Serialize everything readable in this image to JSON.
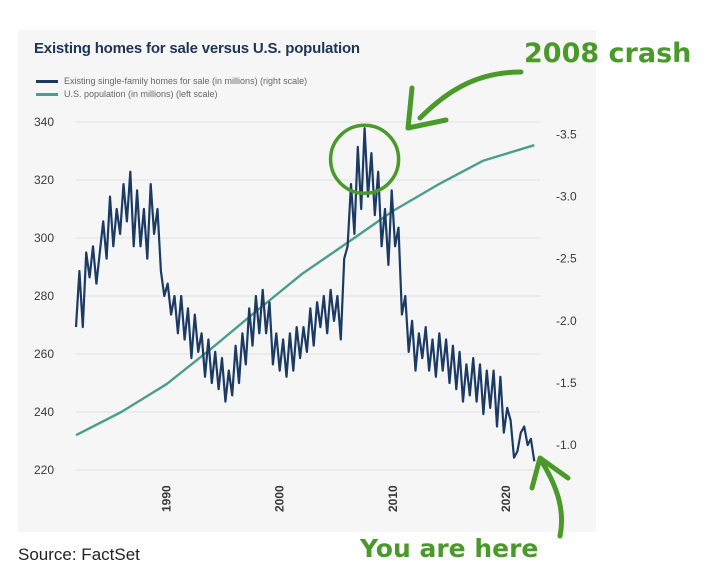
{
  "page": {
    "source": "Source: FactSet",
    "annotations": {
      "crash": "2008 crash",
      "here": "You are here"
    }
  },
  "colors": {
    "homes": "#1b3a64",
    "population": "#4a9e8a",
    "annotation": "#4a9a2a",
    "grid": "#e0e0e0"
  },
  "chart_data": {
    "type": "line",
    "title": "Existing homes for sale versus U.S. population",
    "legend": [
      "Existing single-family homes for sale (in millions) (right scale)",
      "U.S. population (in millions) (left scale)"
    ],
    "legend_position": "top-left",
    "grid": true,
    "xlim": [
      1982,
      2023
    ],
    "x_ticks": [
      "1990",
      "2000",
      "2010",
      "2020"
    ],
    "y_left": {
      "ylim": [
        220,
        340
      ],
      "ticks": [
        "220",
        "240",
        "260",
        "280",
        "300",
        "320",
        "340"
      ]
    },
    "y_right": {
      "ylim": [
        0.8,
        3.6
      ],
      "ticks": [
        "-1.0",
        "-1.5",
        "-2.0",
        "-2.5",
        "-3.0",
        "-3.5"
      ]
    },
    "series": [
      {
        "name": "U.S. population (in millions) (left scale)",
        "axis": "left",
        "x": [
          1982,
          1986,
          1990,
          1994,
          1998,
          2002,
          2006,
          2010,
          2014,
          2018,
          2022.5
        ],
        "y": [
          232,
          240,
          249.6,
          262,
          275,
          287.7,
          298.4,
          309.3,
          318.4,
          326.7,
          332
        ]
      },
      {
        "name": "Existing single-family homes for sale (in millions) (right scale)",
        "axis": "right",
        "x": [
          1982,
          1982.3,
          1982.6,
          1982.9,
          1983.2,
          1983.5,
          1983.8,
          1984.1,
          1984.4,
          1984.7,
          1985,
          1985.3,
          1985.6,
          1985.9,
          1986.2,
          1986.5,
          1986.8,
          1987.1,
          1987.4,
          1987.7,
          1988,
          1988.3,
          1988.6,
          1988.9,
          1989.2,
          1989.5,
          1989.8,
          1990.1,
          1990.4,
          1990.7,
          1991,
          1991.3,
          1991.6,
          1991.9,
          1992.2,
          1992.5,
          1992.8,
          1993.1,
          1993.4,
          1993.7,
          1994,
          1994.3,
          1994.6,
          1994.9,
          1995.2,
          1995.5,
          1995.8,
          1996.1,
          1996.4,
          1996.7,
          1997,
          1997.3,
          1997.6,
          1997.9,
          1998.2,
          1998.5,
          1998.8,
          1999.1,
          1999.4,
          1999.7,
          2000,
          2000.3,
          2000.6,
          2000.9,
          2001.2,
          2001.5,
          2001.8,
          2002.1,
          2002.4,
          2002.7,
          2003,
          2003.3,
          2003.6,
          2003.9,
          2004.2,
          2004.5,
          2004.8,
          2005.1,
          2005.4,
          2005.7,
          2006,
          2006.3,
          2006.6,
          2006.9,
          2007.2,
          2007.5,
          2007.8,
          2008.1,
          2008.4,
          2008.7,
          2009,
          2009.3,
          2009.6,
          2009.9,
          2010.2,
          2010.5,
          2010.8,
          2011.1,
          2011.4,
          2011.7,
          2012,
          2012.3,
          2012.6,
          2012.9,
          2013.2,
          2013.5,
          2013.8,
          2014.1,
          2014.4,
          2014.7,
          2015,
          2015.3,
          2015.6,
          2015.9,
          2016.2,
          2016.5,
          2016.8,
          2017.1,
          2017.4,
          2017.7,
          2018,
          2018.3,
          2018.6,
          2018.9,
          2019.2,
          2019.5,
          2019.8,
          2020.1,
          2020.4,
          2020.7,
          2021,
          2021.3,
          2021.6,
          2021.9,
          2022.2,
          2022.5
        ],
        "y": [
          1.95,
          2.4,
          1.95,
          2.55,
          2.35,
          2.6,
          2.3,
          2.55,
          2.8,
          2.5,
          3.0,
          2.6,
          2.9,
          2.7,
          3.1,
          2.8,
          3.2,
          2.6,
          3.05,
          2.6,
          2.9,
          2.5,
          3.1,
          2.7,
          2.9,
          2.4,
          2.2,
          2.3,
          2.05,
          2.2,
          1.9,
          2.2,
          1.85,
          2.1,
          1.7,
          2.05,
          1.75,
          1.9,
          1.55,
          1.85,
          1.5,
          1.75,
          1.45,
          1.7,
          1.35,
          1.6,
          1.4,
          1.8,
          1.5,
          1.9,
          1.65,
          2.1,
          1.8,
          2.2,
          1.9,
          2.25,
          1.9,
          2.15,
          1.65,
          1.9,
          1.6,
          1.85,
          1.55,
          1.9,
          1.6,
          1.95,
          1.7,
          1.95,
          1.75,
          2.1,
          1.8,
          2.15,
          1.95,
          2.2,
          1.9,
          2.25,
          2.0,
          2.2,
          1.85,
          2.5,
          2.6,
          3.1,
          2.7,
          3.4,
          2.9,
          3.55,
          3.0,
          3.35,
          2.85,
          3.2,
          2.6,
          2.9,
          2.45,
          3.05,
          2.6,
          2.75,
          2.05,
          2.2,
          1.75,
          2.0,
          1.6,
          1.9,
          1.7,
          1.95,
          1.6,
          1.85,
          1.55,
          1.9,
          1.6,
          1.85,
          1.5,
          1.8,
          1.45,
          1.75,
          1.35,
          1.65,
          1.4,
          1.7,
          1.35,
          1.65,
          1.25,
          1.6,
          1.3,
          1.6,
          1.15,
          1.55,
          1.1,
          1.3,
          1.2,
          0.9,
          0.95,
          1.1,
          1.15,
          1.0,
          1.05,
          0.87
        ]
      }
    ],
    "annotation_circle": {
      "x": 2007.5,
      "axis": "right",
      "y": 3.3
    }
  }
}
